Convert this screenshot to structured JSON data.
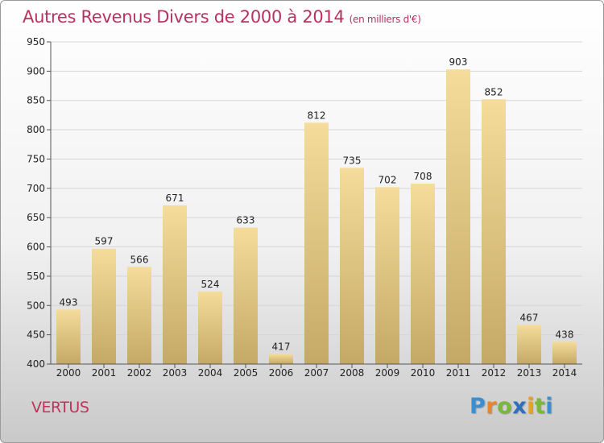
{
  "title": "Autres Revenus Divers de 2000 à 2014",
  "subtitle": "(en milliers d'€)",
  "footer_label": "VERTUS",
  "logo": {
    "text": "Proxiti",
    "letters": [
      {
        "ch": "P",
        "color": "#3a8fd0"
      },
      {
        "ch": "r",
        "color": "#e8862a"
      },
      {
        "ch": "o",
        "color": "#79b83a"
      },
      {
        "ch": "x",
        "color": "#2f6fc0"
      },
      {
        "ch": "i",
        "color": "#e8a02a"
      },
      {
        "ch": "t",
        "color": "#79b83a"
      },
      {
        "ch": "i",
        "color": "#3a8fd0"
      }
    ]
  },
  "colors": {
    "title": "#b8325e",
    "bar_top": "#f5dc9a",
    "bar_bottom": "#c4a866",
    "grid": "#d6d6d6",
    "axis_text": "#222222"
  },
  "chart_data": {
    "type": "bar",
    "categories": [
      "2000",
      "2001",
      "2002",
      "2003",
      "2004",
      "2005",
      "2006",
      "2007",
      "2008",
      "2009",
      "2010",
      "2011",
      "2012",
      "2013",
      "2014"
    ],
    "values": [
      493,
      597,
      566,
      671,
      524,
      633,
      417,
      812,
      735,
      702,
      708,
      903,
      852,
      467,
      438
    ],
    "ylim": [
      400,
      950
    ],
    "yticks": [
      400,
      450,
      500,
      550,
      600,
      650,
      700,
      750,
      800,
      850,
      900,
      950
    ],
    "grid": true
  }
}
